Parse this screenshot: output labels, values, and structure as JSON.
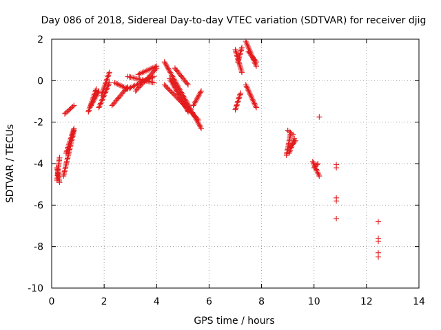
{
  "chart_data": {
    "type": "scatter",
    "title": "Day 086 of 2018, Sidereal Day-to-day VTEC variation (SDTVAR) for receiver djig",
    "xlabel": "GPS time / hours",
    "ylabel": "SDTVAR / TECUs",
    "xlim": [
      0,
      14
    ],
    "ylim": [
      -10,
      2
    ],
    "xticks": [
      0,
      2,
      4,
      6,
      8,
      10,
      12,
      14
    ],
    "yticks": [
      -10,
      -8,
      -6,
      -4,
      -2,
      0,
      2
    ],
    "grid": true,
    "marker": "+",
    "color": "#e31a1c",
    "segments": [
      {
        "x": [
          0.2,
          0.3
        ],
        "y": [
          -4.8,
          -3.7
        ]
      },
      {
        "x": [
          0.2,
          0.3
        ],
        "y": [
          -4.2,
          -4.9
        ]
      },
      {
        "x": [
          0.45,
          0.85
        ],
        "y": [
          -4.6,
          -2.4
        ]
      },
      {
        "x": [
          0.55,
          0.85
        ],
        "y": [
          -3.5,
          -2.3
        ]
      },
      {
        "x": [
          0.5,
          0.85
        ],
        "y": [
          -1.6,
          -1.2
        ]
      },
      {
        "x": [
          1.4,
          1.7
        ],
        "y": [
          -1.5,
          -0.4
        ]
      },
      {
        "x": [
          1.5,
          1.8
        ],
        "y": [
          -1.2,
          -0.5
        ]
      },
      {
        "x": [
          1.8,
          2.2
        ],
        "y": [
          -1.3,
          -0.1
        ]
      },
      {
        "x": [
          1.9,
          2.2
        ],
        "y": [
          -0.7,
          0.4
        ]
      },
      {
        "x": [
          2.3,
          2.9
        ],
        "y": [
          -1.2,
          -0.3
        ]
      },
      {
        "x": [
          2.4,
          2.9
        ],
        "y": [
          -0.1,
          -0.4
        ]
      },
      {
        "x": [
          2.9,
          3.9
        ],
        "y": [
          -0.4,
          0.2
        ]
      },
      {
        "x": [
          2.9,
          3.9
        ],
        "y": [
          0.2,
          -0.1
        ]
      },
      {
        "x": [
          3.2,
          4.0
        ],
        "y": [
          -0.5,
          0.6
        ]
      },
      {
        "x": [
          3.3,
          4.0
        ],
        "y": [
          0.3,
          0.7
        ]
      },
      {
        "x": [
          4.3,
          5.7
        ],
        "y": [
          0.9,
          -2.3
        ]
      },
      {
        "x": [
          4.3,
          5.6
        ],
        "y": [
          -0.2,
          -1.9
        ]
      },
      {
        "x": [
          4.5,
          5.2
        ],
        "y": [
          0.1,
          -1.5
        ]
      },
      {
        "x": [
          4.7,
          5.2
        ],
        "y": [
          0.6,
          -0.2
        ]
      },
      {
        "x": [
          5.4,
          5.7
        ],
        "y": [
          -1.2,
          -0.5
        ]
      },
      {
        "x": [
          7.0,
          7.25
        ],
        "y": [
          1.5,
          0.4
        ]
      },
      {
        "x": [
          7.1,
          7.25
        ],
        "y": [
          0.9,
          1.6
        ]
      },
      {
        "x": [
          7.0,
          7.2
        ],
        "y": [
          -1.4,
          -0.6
        ]
      },
      {
        "x": [
          7.4,
          7.8
        ],
        "y": [
          1.9,
          0.7
        ]
      },
      {
        "x": [
          7.5,
          7.8
        ],
        "y": [
          1.4,
          0.9
        ]
      },
      {
        "x": [
          7.4,
          7.8
        ],
        "y": [
          -0.2,
          -1.3
        ]
      },
      {
        "x": [
          8.95,
          9.1
        ],
        "y": [
          -3.6,
          -2.6
        ]
      },
      {
        "x": [
          9.0,
          9.2
        ],
        "y": [
          -2.4,
          -2.6
        ]
      },
      {
        "x": [
          9.05,
          9.25
        ],
        "y": [
          -3.5,
          -2.8
        ]
      },
      {
        "x": [
          9.1,
          9.3
        ],
        "y": [
          -3.2,
          -2.9
        ]
      },
      {
        "x": [
          9.95,
          10.2
        ],
        "y": [
          -3.9,
          -4.6
        ]
      },
      {
        "x": [
          10.0,
          10.15
        ],
        "y": [
          -4.2,
          -4.0
        ]
      }
    ],
    "points": [
      {
        "x": 10.2,
        "y": -1.75
      },
      {
        "x": 10.85,
        "y": -4.05
      },
      {
        "x": 10.85,
        "y": -4.2
      },
      {
        "x": 10.85,
        "y": -5.65
      },
      {
        "x": 10.85,
        "y": -5.8
      },
      {
        "x": 10.85,
        "y": -6.65
      },
      {
        "x": 12.45,
        "y": -6.8
      },
      {
        "x": 12.45,
        "y": -7.6
      },
      {
        "x": 12.45,
        "y": -7.75
      },
      {
        "x": 12.45,
        "y": -8.3
      },
      {
        "x": 12.45,
        "y": -8.5
      }
    ]
  }
}
